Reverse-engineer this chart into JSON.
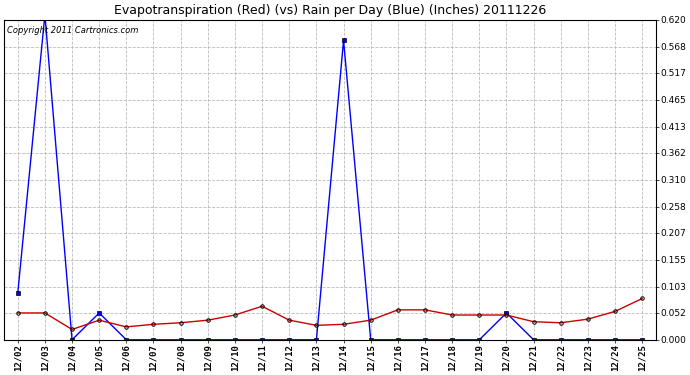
{
  "title": "Evapotranspiration (Red) (vs) Rain per Day (Blue) (Inches) 20111226",
  "copyright_text": "Copyright 2011 Cartronics.com",
  "x_labels": [
    "12/02",
    "12/03",
    "12/04",
    "12/05",
    "12/06",
    "12/07",
    "12/08",
    "12/09",
    "12/10",
    "12/11",
    "12/12",
    "12/13",
    "12/14",
    "12/15",
    "12/16",
    "12/17",
    "12/18",
    "12/19",
    "12/20",
    "12/21",
    "12/22",
    "12/23",
    "12/24",
    "12/25"
  ],
  "blue_data": [
    0.09,
    0.63,
    0.0,
    0.052,
    0.0,
    0.0,
    0.0,
    0.0,
    0.0,
    0.0,
    0.0,
    0.0,
    0.58,
    0.0,
    0.0,
    0.0,
    0.0,
    0.0,
    0.052,
    0.0,
    0.0,
    0.0,
    0.0,
    0.0
  ],
  "red_data": [
    0.052,
    0.052,
    0.02,
    0.038,
    0.025,
    0.03,
    0.033,
    0.038,
    0.048,
    0.065,
    0.038,
    0.028,
    0.03,
    0.038,
    0.058,
    0.058,
    0.048,
    0.048,
    0.048,
    0.035,
    0.033,
    0.04,
    0.055,
    0.08
  ],
  "ymax": 0.62,
  "yticks": [
    0.0,
    0.052,
    0.103,
    0.155,
    0.207,
    0.258,
    0.31,
    0.362,
    0.413,
    0.465,
    0.517,
    0.568,
    0.62
  ],
  "blue_color": "#0000ff",
  "red_color": "#cc0000",
  "bg_color": "#ffffff",
  "plot_bg_color": "#ffffff",
  "grid_color": "#bbbbbb",
  "title_fontsize": 9,
  "copyright_fontsize": 6,
  "tick_fontsize": 6.5
}
